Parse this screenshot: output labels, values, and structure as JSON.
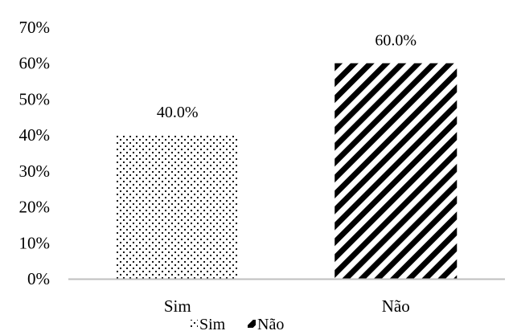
{
  "chart_data": {
    "type": "bar",
    "title": "",
    "xlabel": "",
    "ylabel": "",
    "categories": [
      "Sim",
      "Não"
    ],
    "values": [
      40.0,
      60.0
    ],
    "data_labels": [
      "40.0%",
      "60.0%"
    ],
    "ylim": [
      0,
      70
    ],
    "yticks": [
      0,
      10,
      20,
      30,
      40,
      50,
      60,
      70
    ],
    "ytick_labels": [
      "0%",
      "10%",
      "20%",
      "30%",
      "40%",
      "50%",
      "60%",
      "70%"
    ],
    "grid": false,
    "legend": {
      "placement": "bottom",
      "entries": [
        {
          "label": "Sim",
          "pattern": "dotted"
        },
        {
          "label": "Não",
          "pattern": "diagonal-stripes"
        }
      ]
    },
    "colors": {
      "axis": "#bfbfbf",
      "pattern_ink": "#000000",
      "background": "#ffffff"
    }
  }
}
